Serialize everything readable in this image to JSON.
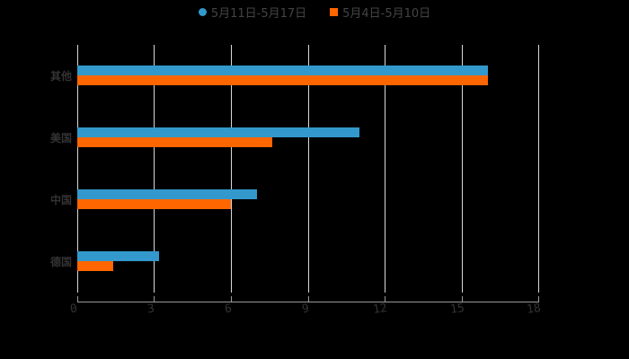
{
  "legend": [
    {
      "label": "5月11日-5月17日",
      "color": "#3399cc",
      "shape": "circle"
    },
    {
      "label": "5月4日-5月10日",
      "color": "#ff6600",
      "shape": "square"
    }
  ],
  "axis": {
    "ticks": [
      "0",
      "3",
      "6",
      "9",
      "12",
      "15",
      "18"
    ]
  },
  "chart_data": {
    "type": "bar",
    "orientation": "horizontal",
    "title": "",
    "categories": [
      "其他",
      "美国",
      "中国",
      "德国"
    ],
    "series": [
      {
        "name": "5月11日-5月17日",
        "color": "#3399cc",
        "values": [
          16,
          11,
          7,
          3.2
        ]
      },
      {
        "name": "5月4日-5月10日",
        "color": "#ff6600",
        "values": [
          16,
          7.6,
          6,
          1.4
        ]
      }
    ],
    "xlabel": "",
    "ylabel": "",
    "xlim": [
      0,
      18
    ],
    "xticks": [
      0,
      3,
      6,
      9,
      12,
      15,
      18
    ],
    "grid": true,
    "legend_position": "top"
  }
}
